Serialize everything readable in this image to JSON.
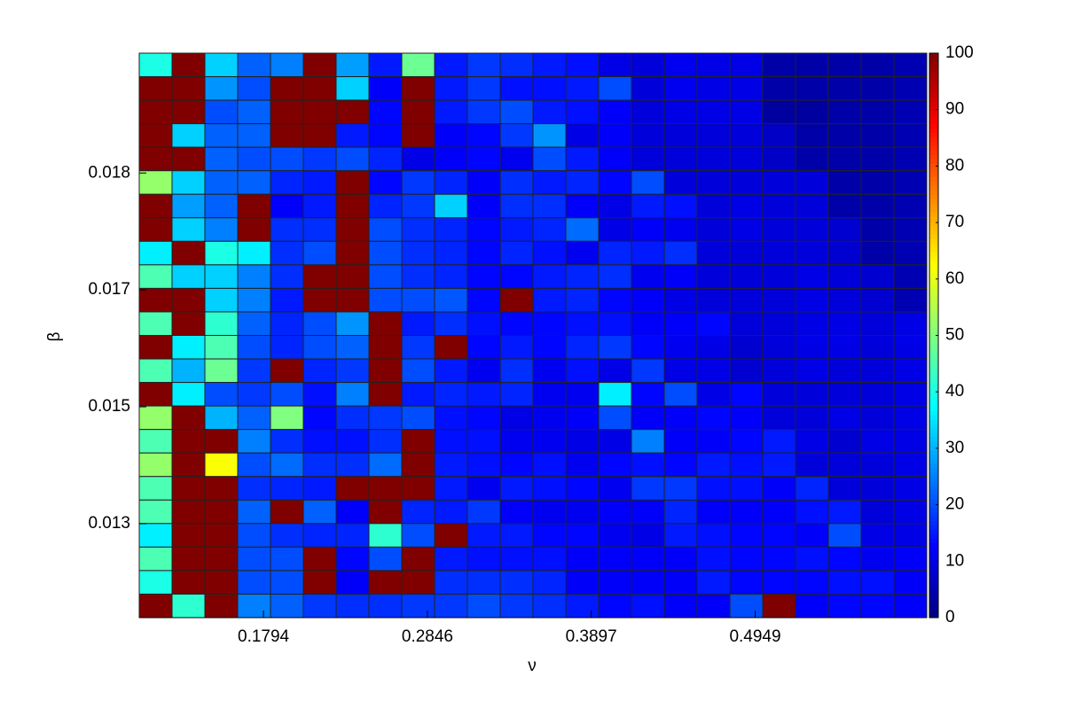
{
  "chart_data": {
    "type": "heatmap",
    "xlabel": "ν",
    "ylabel": "β",
    "xlim": [
      0.0997,
      0.605
    ],
    "xticks": [
      0.1794,
      0.2846,
      0.3897,
      0.4949
    ],
    "ylim": [
      0.01213,
      0.01976
    ],
    "yticks": [
      {
        "value": 0.0134,
        "label": "0.013"
      },
      {
        "value": 0.01498,
        "label": "0.015"
      },
      {
        "value": 0.01656,
        "label": "0.017"
      },
      {
        "value": 0.01814,
        "label": "0.018"
      }
    ],
    "colormap": "jet",
    "clim": [
      0,
      100
    ],
    "cticks": [
      0,
      10,
      20,
      30,
      40,
      50,
      60,
      70,
      80,
      90,
      100
    ],
    "z": [
      [
        40,
        100,
        33,
        22,
        25,
        100,
        28,
        15,
        48,
        15,
        18,
        17,
        15,
        14,
        10,
        9,
        11,
        10,
        10,
        4,
        4,
        4,
        4,
        5
      ],
      [
        100,
        100,
        27,
        20,
        100,
        100,
        33,
        12,
        100,
        15,
        18,
        14,
        14,
        15,
        20,
        9,
        11,
        10,
        10,
        4,
        4,
        4,
        4,
        5
      ],
      [
        100,
        100,
        20,
        22,
        100,
        100,
        100,
        13,
        100,
        15,
        18,
        20,
        15,
        14,
        12,
        9,
        10,
        10,
        10,
        3,
        3,
        4,
        4,
        5
      ],
      [
        100,
        33,
        22,
        22,
        100,
        100,
        15,
        13,
        100,
        12,
        13,
        18,
        27,
        10,
        12,
        9,
        9,
        9,
        9,
        7,
        4,
        4,
        4,
        5
      ],
      [
        100,
        100,
        22,
        20,
        20,
        18,
        20,
        16,
        10,
        12,
        13,
        11,
        20,
        15,
        12,
        9,
        9,
        9,
        9,
        7,
        4,
        4,
        4,
        5
      ],
      [
        52,
        33,
        22,
        22,
        16,
        15,
        100,
        13,
        18,
        16,
        12,
        17,
        15,
        16,
        13,
        20,
        9,
        9,
        9,
        9,
        9,
        4,
        4,
        5
      ],
      [
        100,
        28,
        22,
        100,
        12,
        15,
        100,
        16,
        18,
        33,
        12,
        17,
        17,
        12,
        10,
        15,
        14,
        9,
        10,
        9,
        9,
        4,
        4,
        5
      ],
      [
        100,
        33,
        25,
        100,
        17,
        17,
        100,
        20,
        17,
        16,
        13,
        15,
        16,
        23,
        10,
        12,
        11,
        9,
        10,
        9,
        9,
        8,
        4,
        5
      ],
      [
        36,
        100,
        40,
        36,
        17,
        20,
        100,
        20,
        17,
        16,
        13,
        16,
        14,
        11,
        16,
        15,
        17,
        9,
        9,
        9,
        9,
        8,
        4,
        5
      ],
      [
        45,
        33,
        33,
        25,
        17,
        100,
        100,
        20,
        17,
        16,
        13,
        13,
        15,
        16,
        17,
        11,
        12,
        9,
        9,
        9,
        10,
        9,
        8,
        5
      ],
      [
        100,
        100,
        33,
        25,
        15,
        100,
        100,
        20,
        20,
        21,
        13,
        100,
        15,
        16,
        13,
        12,
        10,
        9,
        9,
        9,
        10,
        9,
        8,
        5
      ],
      [
        45,
        100,
        42,
        22,
        16,
        20,
        27,
        100,
        15,
        17,
        14,
        13,
        13,
        14,
        14,
        12,
        12,
        13,
        9,
        9,
        10,
        10,
        9,
        10
      ],
      [
        100,
        36,
        45,
        20,
        16,
        20,
        22,
        100,
        18,
        100,
        13,
        15,
        13,
        16,
        18,
        13,
        11,
        10,
        8,
        9,
        10,
        10,
        9,
        10
      ],
      [
        45,
        30,
        48,
        18,
        100,
        16,
        18,
        100,
        20,
        15,
        11,
        17,
        11,
        14,
        10,
        18,
        10,
        10,
        8,
        9,
        10,
        9,
        9,
        10
      ],
      [
        100,
        36,
        20,
        18,
        20,
        14,
        25,
        100,
        15,
        16,
        15,
        16,
        11,
        11,
        36,
        13,
        20,
        10,
        13,
        9,
        9,
        9,
        9,
        10
      ],
      [
        52,
        100,
        30,
        22,
        50,
        13,
        17,
        18,
        20,
        14,
        13,
        10,
        11,
        12,
        20,
        12,
        12,
        13,
        12,
        9,
        9,
        10,
        9,
        10
      ],
      [
        45,
        100,
        100,
        25,
        17,
        14,
        14,
        17,
        100,
        14,
        14,
        11,
        11,
        10,
        10,
        25,
        12,
        12,
        13,
        15,
        10,
        8,
        10,
        10
      ],
      [
        52,
        100,
        62,
        20,
        23,
        17,
        17,
        23,
        100,
        15,
        14,
        13,
        14,
        11,
        13,
        14,
        13,
        15,
        14,
        15,
        9,
        9,
        9,
        10
      ],
      [
        45,
        100,
        100,
        17,
        16,
        15,
        100,
        100,
        100,
        15,
        11,
        15,
        14,
        13,
        11,
        18,
        18,
        14,
        14,
        12,
        16,
        9,
        9,
        10
      ],
      [
        45,
        100,
        100,
        22,
        100,
        22,
        12,
        100,
        16,
        15,
        18,
        12,
        11,
        11,
        12,
        12,
        16,
        12,
        12,
        12,
        14,
        15,
        9,
        10
      ],
      [
        36,
        100,
        100,
        20,
        17,
        16,
        16,
        42,
        20,
        100,
        15,
        15,
        13,
        13,
        11,
        10,
        15,
        14,
        13,
        13,
        12,
        20,
        10,
        10
      ],
      [
        45,
        100,
        100,
        20,
        20,
        100,
        13,
        20,
        100,
        15,
        14,
        14,
        14,
        12,
        12,
        12,
        12,
        14,
        13,
        13,
        14,
        13,
        11,
        12
      ],
      [
        40,
        100,
        100,
        20,
        20,
        100,
        12,
        100,
        100,
        17,
        17,
        17,
        16,
        12,
        12,
        12,
        12,
        15,
        13,
        13,
        13,
        14,
        14,
        12
      ],
      [
        100,
        42,
        100,
        25,
        22,
        18,
        17,
        17,
        18,
        18,
        20,
        18,
        17,
        15,
        13,
        14,
        12,
        12,
        20,
        100,
        12,
        13,
        13,
        12
      ]
    ]
  }
}
